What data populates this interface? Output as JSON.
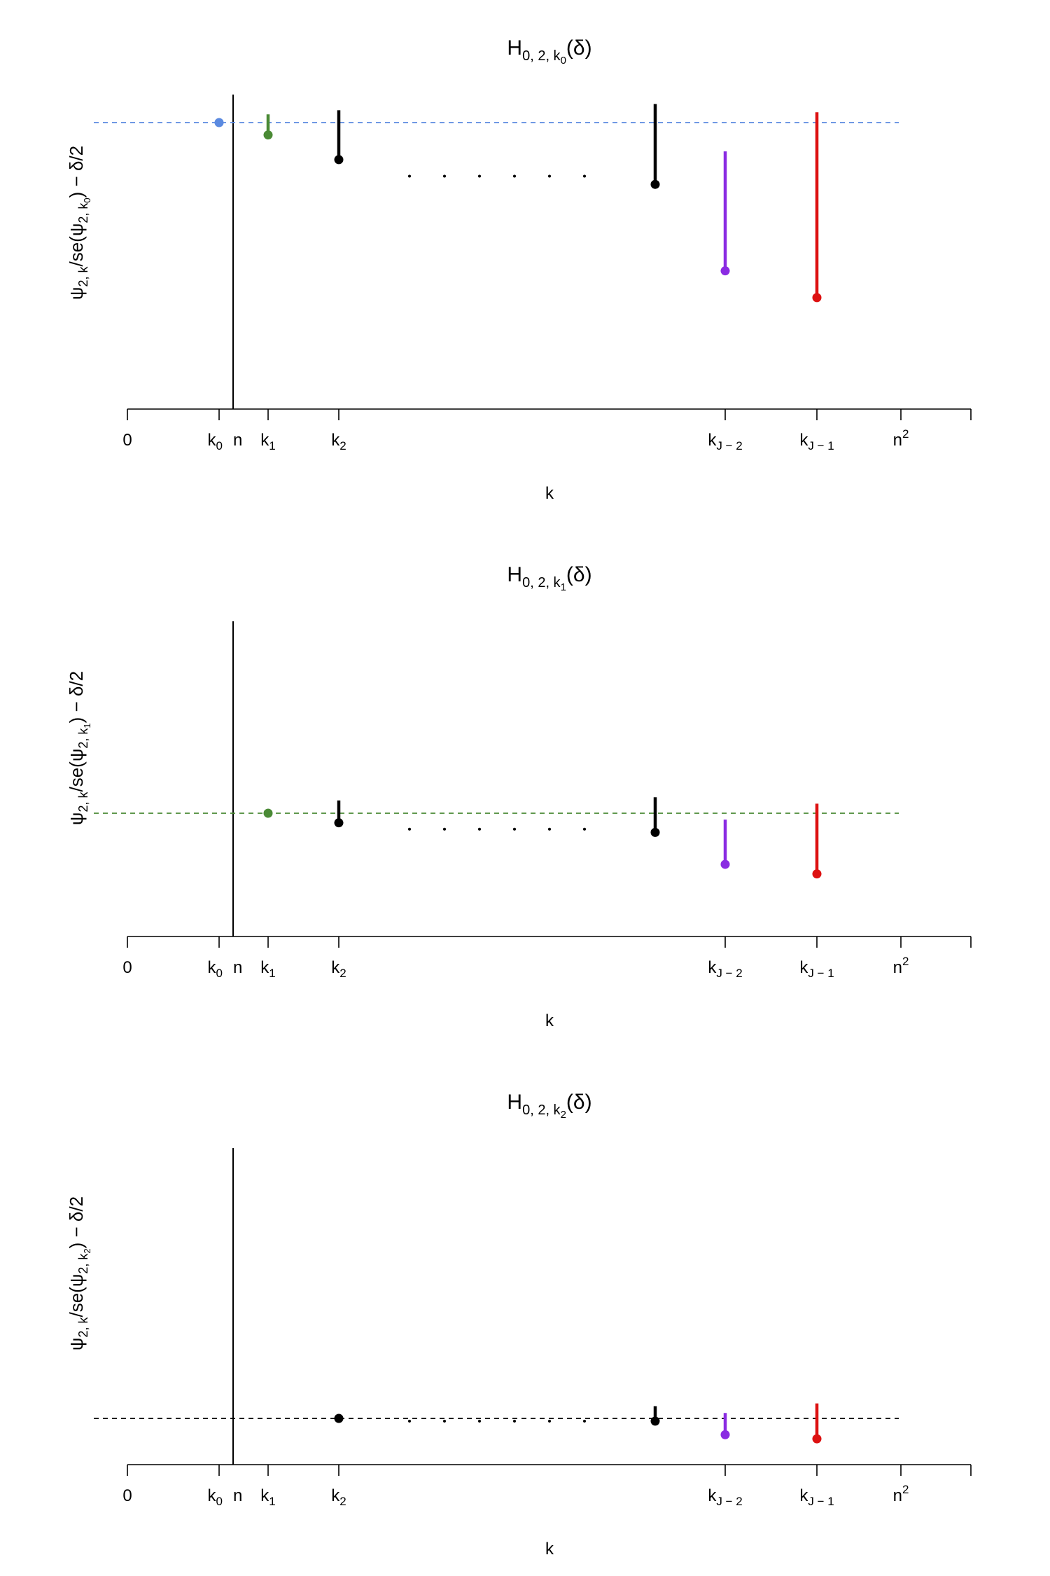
{
  "chart_data": [
    {
      "type": "scatter",
      "title": {
        "main": "H",
        "sub": "0, 2, k",
        "subsub": "0",
        "suffix": "(δ)"
      },
      "ylabel": {
        "lead": "ψ",
        "sub1": "2, k",
        "mid": "/se(ψ",
        "sub2": "2, k",
        "subsub": "0",
        "tail": ") − δ/2"
      },
      "xlabel": "k",
      "reference_color": "#5b8ae0",
      "reference_point": {
        "x": "k0",
        "y": 0
      },
      "points": [
        {
          "x": "k1",
          "y": -0.3,
          "top": 0.2,
          "color": "#4a8a35"
        },
        {
          "x": "k2",
          "y": -0.9,
          "top": 0.3,
          "color": "#000000"
        },
        {
          "x": "kJ-3",
          "y": -1.5,
          "top": 0.45,
          "color": "#000000"
        },
        {
          "x": "kJ-2",
          "y": -3.6,
          "top": -0.7,
          "color": "#8a2be2"
        },
        {
          "x": "kJ-1",
          "y": -4.25,
          "top": 0.25,
          "color": "#dd1111"
        }
      ],
      "ellipsis_y": -1.3
    },
    {
      "type": "scatter",
      "title": {
        "main": "H",
        "sub": "0, 2, k",
        "subsub": "1",
        "suffix": "(δ)"
      },
      "ylabel": {
        "lead": "ψ",
        "sub1": "2, k",
        "mid": "/se(ψ",
        "sub2": "2, k",
        "subsub": "1",
        "tail": ") − δ/2"
      },
      "xlabel": "k",
      "reference_color": "#4a8a35",
      "reference_point": {
        "x": "k1",
        "y": 0
      },
      "points": [
        {
          "x": "k2",
          "y": -0.3,
          "top": 0.4,
          "color": "#000000"
        },
        {
          "x": "kJ-3",
          "y": -0.6,
          "top": 0.5,
          "color": "#000000"
        },
        {
          "x": "kJ-2",
          "y": -1.6,
          "top": -0.2,
          "color": "#8a2be2"
        },
        {
          "x": "kJ-1",
          "y": -1.9,
          "top": 0.3,
          "color": "#dd1111"
        }
      ],
      "ellipsis_y": -0.5
    },
    {
      "type": "scatter",
      "title": {
        "main": "H",
        "sub": "0, 2, k",
        "subsub": "2",
        "suffix": "(δ)"
      },
      "ylabel": {
        "lead": "ψ",
        "sub1": "2, k",
        "mid": "/se(ψ",
        "sub2": "2, k",
        "subsub": "2",
        "tail": ") − δ/2"
      },
      "xlabel": "k",
      "reference_color": "#000000",
      "reference_point": {
        "x": "k2",
        "y": 0
      },
      "points": [
        {
          "x": "kJ-3",
          "y": -0.1,
          "top": 0.45,
          "color": "#000000"
        },
        {
          "x": "kJ-2",
          "y": -0.6,
          "top": 0.2,
          "color": "#8a2be2"
        },
        {
          "x": "kJ-1",
          "y": -0.75,
          "top": 0.55,
          "color": "#dd1111"
        }
      ],
      "ellipsis_y": -0.1
    }
  ],
  "axis": {
    "tick_labels": [
      {
        "id": "zero",
        "main": "0",
        "sub": ""
      },
      {
        "id": "k0",
        "main": "k",
        "sub": "0"
      },
      {
        "id": "n",
        "main": "n",
        "sub": ""
      },
      {
        "id": "k1",
        "main": "k",
        "sub": "1"
      },
      {
        "id": "k2",
        "main": "k",
        "sub": "2"
      },
      {
        "id": "kJ-2",
        "main": "k",
        "sub": "J − 2"
      },
      {
        "id": "kJ-1",
        "main": "k",
        "sub": "J − 1"
      },
      {
        "id": "n2",
        "main": "n",
        "sup": "2"
      }
    ]
  }
}
